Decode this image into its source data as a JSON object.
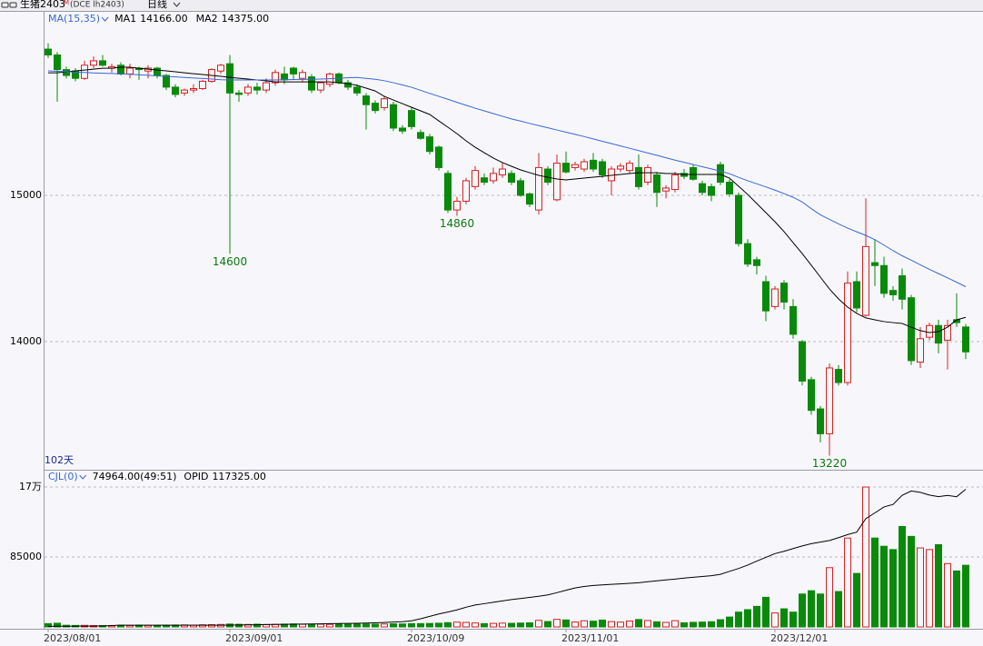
{
  "chart_data": [
    {
      "type": "candlestick",
      "title": "生猪2403",
      "title_sup": "M",
      "subtitle": "(DCE lh2403)",
      "period": "日线",
      "indicator": "MA(15,35)",
      "span_label": "102天",
      "up_color": "#d42020",
      "down_color": "#0a8a0a",
      "ylim": [
        13124,
        16255
      ],
      "yticks": [
        14000,
        15000
      ],
      "grid": true,
      "x": [
        "2023/08/01",
        null,
        null,
        null,
        null,
        null,
        null,
        null,
        null,
        null,
        null,
        null,
        null,
        null,
        null,
        null,
        null,
        null,
        null,
        null,
        "2023/09/01",
        null,
        null,
        null,
        null,
        null,
        null,
        null,
        null,
        null,
        null,
        null,
        null,
        null,
        null,
        null,
        null,
        null,
        null,
        null,
        "2023/10/09",
        null,
        null,
        null,
        null,
        null,
        null,
        null,
        null,
        null,
        null,
        null,
        null,
        null,
        null,
        null,
        null,
        "2023/11/01",
        null,
        null,
        null,
        null,
        null,
        null,
        null,
        null,
        null,
        null,
        null,
        null,
        null,
        null,
        null,
        null,
        null,
        null,
        null,
        null,
        null,
        null,
        "2023/12/01",
        null,
        null,
        null,
        null,
        null,
        null,
        null,
        null,
        null,
        null,
        null,
        null,
        null,
        null,
        null,
        null,
        null,
        null,
        null,
        null,
        null
      ],
      "open": [
        16000,
        15960,
        15860,
        15850,
        15800,
        15890,
        15920,
        15870,
        15890,
        15830,
        15870,
        15850,
        15870,
        15820,
        15740,
        15700,
        15720,
        15730,
        15780,
        15850,
        15900,
        15700,
        15700,
        15740,
        15720,
        15770,
        15830,
        15870,
        15800,
        15810,
        15720,
        15760,
        15830,
        15770,
        15740,
        15680,
        15630,
        15600,
        15620,
        15460,
        15580,
        15430,
        15400,
        15330,
        15150,
        14900,
        14960,
        15060,
        15120,
        15100,
        15140,
        15150,
        15100,
        15010,
        14900,
        15180,
        14970,
        15220,
        15190,
        15180,
        15240,
        15230,
        15100,
        15180,
        15170,
        15190,
        15090,
        15140,
        15030,
        15040,
        15150,
        15190,
        15080,
        15060,
        15210,
        15090,
        15000,
        14670,
        14560,
        14410,
        14240,
        14400,
        14240,
        14000,
        13740,
        13540,
        13370,
        13810,
        13720,
        14410,
        14180,
        14540,
        14520,
        14350,
        14450,
        14300,
        13860,
        14030,
        14110,
        14010,
        14150,
        14100
      ],
      "high": [
        16040,
        15980,
        15880,
        15870,
        15920,
        15950,
        15960,
        15900,
        15910,
        15900,
        15880,
        15890,
        15880,
        15830,
        15760,
        15730,
        15760,
        15790,
        15870,
        15900,
        15960,
        15720,
        15760,
        15770,
        15800,
        15860,
        15880,
        15880,
        15860,
        15830,
        15780,
        15840,
        15840,
        15790,
        15760,
        15700,
        15650,
        15680,
        15640,
        15480,
        15600,
        15450,
        15420,
        15340,
        15170,
        14990,
        15120,
        15200,
        15150,
        15190,
        15220,
        15170,
        15120,
        15020,
        15290,
        15200,
        15280,
        15300,
        15230,
        15250,
        15290,
        15250,
        15200,
        15220,
        15240,
        15280,
        15210,
        15160,
        15070,
        15160,
        15180,
        15210,
        15100,
        15080,
        15230,
        15110,
        15020,
        14700,
        14580,
        14450,
        14380,
        14420,
        14290,
        14010,
        13760,
        13560,
        13850,
        13840,
        14480,
        14480,
        14980,
        14700,
        14580,
        14380,
        14500,
        14320,
        14100,
        14130,
        14150,
        14150,
        14330,
        14120
      ],
      "low": [
        15940,
        15640,
        15800,
        15780,
        15790,
        15870,
        15880,
        15840,
        15820,
        15800,
        15790,
        15800,
        15800,
        15720,
        15670,
        15680,
        15700,
        15720,
        15770,
        15830,
        14600,
        15640,
        15680,
        15690,
        15700,
        15750,
        15760,
        15790,
        15780,
        15700,
        15700,
        15740,
        15760,
        15720,
        15680,
        15450,
        15560,
        15580,
        15440,
        15420,
        15450,
        15380,
        15280,
        15170,
        14880,
        14860,
        14940,
        15040,
        15070,
        15080,
        15120,
        15070,
        14990,
        14920,
        14870,
        15070,
        14960,
        15150,
        15170,
        15160,
        15160,
        15120,
        15000,
        15160,
        15150,
        15040,
        15070,
        14920,
        14980,
        15020,
        15110,
        15100,
        15000,
        14960,
        15070,
        14990,
        14650,
        14510,
        14460,
        14140,
        14220,
        14220,
        14020,
        13700,
        13500,
        13310,
        13220,
        13700,
        13700,
        14200,
        14170,
        14380,
        14300,
        14280,
        14220,
        13840,
        13820,
        14010,
        13920,
        13810,
        14100,
        13880
      ],
      "close": [
        15960,
        15860,
        15820,
        15800,
        15890,
        15920,
        15890,
        15880,
        15830,
        15870,
        15860,
        15870,
        15820,
        15740,
        15690,
        15720,
        15730,
        15780,
        15860,
        15890,
        15700,
        15690,
        15740,
        15720,
        15770,
        15840,
        15790,
        15830,
        15840,
        15720,
        15770,
        15830,
        15770,
        15740,
        15700,
        15620,
        15580,
        15660,
        15460,
        15440,
        15470,
        15390,
        15300,
        15190,
        14900,
        14960,
        15100,
        15170,
        15090,
        15150,
        15180,
        15090,
        15000,
        14940,
        15190,
        15090,
        15220,
        15160,
        15210,
        15230,
        15180,
        15140,
        15180,
        15200,
        15220,
        15060,
        15190,
        15020,
        15050,
        15140,
        15130,
        15110,
        15020,
        15000,
        15090,
        15010,
        14670,
        14530,
        14520,
        14210,
        14360,
        14270,
        14050,
        13730,
        13530,
        13370,
        13820,
        13720,
        14400,
        14230,
        14650,
        14520,
        14330,
        14320,
        14290,
        13870,
        14020,
        14110,
        13990,
        14110,
        14130,
        13930
      ],
      "annotations": [
        14600,
        14860,
        13220
      ],
      "series": [
        {
          "name": "MA1",
          "color": "#000000",
          "last_label": "14166.00",
          "values": [
            15838,
            15838,
            15845,
            15851,
            15857,
            15863,
            15869,
            15869,
            15876,
            15876,
            15869,
            15863,
            15857,
            15851,
            15845,
            15838,
            15832,
            15826,
            15820,
            15814,
            15807,
            15801,
            15795,
            15789,
            15783,
            15776,
            15776,
            15776,
            15776,
            15776,
            15776,
            15776,
            15770,
            15764,
            15752,
            15733,
            15714,
            15677,
            15652,
            15627,
            15602,
            15578,
            15553,
            15509,
            15466,
            15422,
            15373,
            15329,
            15292,
            15255,
            15224,
            15199,
            15174,
            15155,
            15137,
            15124,
            15112,
            15106,
            15112,
            15118,
            15124,
            15130,
            15137,
            15143,
            15149,
            15155,
            15155,
            15155,
            15149,
            15149,
            15143,
            15143,
            15143,
            15143,
            15143,
            15118,
            15062,
            15006,
            14944,
            14882,
            14820,
            14752,
            14677,
            14602,
            14522,
            14441,
            14360,
            14292,
            14236,
            14193,
            14162,
            14149,
            14137,
            14130,
            14124,
            14099,
            14075,
            14062,
            14068,
            14099,
            14149,
            14166
          ]
        },
        {
          "name": "MA2",
          "color": "#3a66d6",
          "last_label": "14375.00",
          "values": [
            15851,
            15848,
            15846,
            15843,
            15840,
            15837,
            15835,
            15833,
            15830,
            15828,
            15825,
            15821,
            15817,
            15813,
            15810,
            15806,
            15802,
            15799,
            15795,
            15791,
            15789,
            15789,
            15789,
            15789,
            15789,
            15789,
            15791,
            15792,
            15793,
            15794,
            15795,
            15798,
            15801,
            15804,
            15806,
            15800,
            15794,
            15784,
            15770,
            15755,
            15739,
            15718,
            15697,
            15677,
            15657,
            15636,
            15616,
            15596,
            15578,
            15559,
            15541,
            15523,
            15508,
            15492,
            15477,
            15462,
            15447,
            15432,
            15417,
            15402,
            15386,
            15370,
            15354,
            15338,
            15322,
            15306,
            15290,
            15274,
            15257,
            15241,
            15226,
            15211,
            15196,
            15181,
            15166,
            15148,
            15123,
            15100,
            15079,
            15058,
            15036,
            15012,
            14987,
            14955,
            14909,
            14867,
            14836,
            14805,
            14776,
            14751,
            14726,
            14697,
            14660,
            14622,
            14587,
            14557,
            14525,
            14494,
            14465,
            14436,
            14406,
            14375
          ]
        }
      ]
    },
    {
      "type": "volume",
      "indicator": "CJL(0)",
      "last_label": "74964.00(49:51)",
      "ylim": [
        0,
        191000
      ],
      "yticks": [
        {
          "value": 170000,
          "label": "17万"
        },
        85000
      ],
      "grid": true,
      "y2lim": [
        0,
        134000
      ],
      "values": [
        4000,
        4500,
        2000,
        1800,
        1900,
        1600,
        1700,
        1500,
        2000,
        1800,
        2200,
        2000,
        1900,
        2100,
        2300,
        2400,
        2200,
        2600,
        2800,
        3000,
        3500,
        3200,
        3000,
        3300,
        2900,
        3100,
        3400,
        3600,
        3200,
        3000,
        3300,
        3100,
        3500,
        3200,
        3400,
        3600,
        3300,
        3500,
        3800,
        3600,
        3900,
        4000,
        4200,
        4500,
        5200,
        5800,
        5500,
        4800,
        4000,
        4300,
        4600,
        4400,
        4700,
        5000,
        8000,
        6500,
        9200,
        8500,
        6000,
        7500,
        7000,
        8300,
        6500,
        5800,
        7200,
        9000,
        7800,
        6200,
        5500,
        7600,
        5000,
        5600,
        5900,
        6300,
        8800,
        12000,
        18000,
        21000,
        25000,
        36000,
        17000,
        22000,
        18000,
        40000,
        44000,
        40000,
        72000,
        43000,
        108000,
        65000,
        170000,
        108000,
        98000,
        94000,
        122000,
        110000,
        96000,
        94000,
        100000,
        77000,
        68000,
        74964
      ],
      "series": [
        {
          "name": "OPID",
          "color": "#000000",
          "axis": "y2",
          "last_label": "117325.00",
          "values": [
            500,
            550,
            600,
            650,
            700,
            750,
            800,
            1200,
            1500,
            1500,
            1500,
            1500,
            1500,
            1500,
            1500,
            1500,
            1500,
            1500,
            1500,
            1500,
            1550,
            1660,
            1770,
            1880,
            1990,
            2100,
            2210,
            2320,
            2430,
            2540,
            2650,
            2760,
            2870,
            2980,
            3100,
            3300,
            3500,
            3800,
            4200,
            4500,
            5200,
            7000,
            9000,
            11000,
            12700,
            14500,
            16800,
            18700,
            19800,
            21000,
            22200,
            23300,
            24200,
            25200,
            26100,
            27300,
            29200,
            31300,
            33200,
            34500,
            35300,
            35800,
            36300,
            36700,
            37200,
            37700,
            38500,
            39300,
            40100,
            40800,
            41600,
            42300,
            43000,
            43700,
            44800,
            47400,
            49800,
            52700,
            56100,
            59300,
            62500,
            64500,
            66800,
            69000,
            71000,
            72300,
            73700,
            76100,
            78700,
            80800,
            92300,
            97200,
            102300,
            104400,
            112200,
            115900,
            114700,
            112400,
            111100,
            112100,
            111000,
            117325
          ]
        }
      ]
    }
  ]
}
